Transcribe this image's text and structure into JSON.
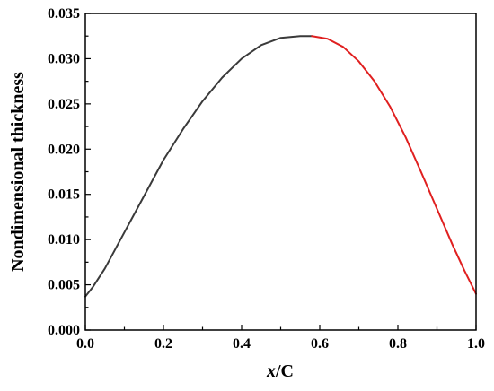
{
  "chart_data": {
    "type": "line",
    "xlabel_italic": "x",
    "xlabel_rest": "/C",
    "ylabel": "Nondimensional thickness",
    "xlim": [
      0.0,
      1.0
    ],
    "ylim": [
      0.0,
      0.035
    ],
    "x_ticks": [
      "0.0",
      "0.2",
      "0.4",
      "0.6",
      "0.8",
      "1.0"
    ],
    "y_ticks": [
      "0.000",
      "0.005",
      "0.010",
      "0.015",
      "0.020",
      "0.025",
      "0.030",
      "0.035"
    ],
    "grid": false,
    "series": [
      {
        "color": "#3a3a3a",
        "points": [
          [
            0.0,
            0.0037
          ],
          [
            0.02,
            0.0048
          ],
          [
            0.05,
            0.0068
          ],
          [
            0.08,
            0.0092
          ],
          [
            0.1,
            0.0108
          ],
          [
            0.15,
            0.0148
          ],
          [
            0.2,
            0.0188
          ],
          [
            0.25,
            0.0222
          ],
          [
            0.3,
            0.0253
          ],
          [
            0.35,
            0.0279
          ],
          [
            0.4,
            0.03
          ],
          [
            0.45,
            0.0315
          ],
          [
            0.5,
            0.0323
          ],
          [
            0.55,
            0.0325
          ],
          [
            0.58,
            0.0325
          ]
        ]
      },
      {
        "color": "#e02020",
        "points": [
          [
            0.58,
            0.0325
          ],
          [
            0.62,
            0.0322
          ],
          [
            0.66,
            0.0313
          ],
          [
            0.7,
            0.0297
          ],
          [
            0.74,
            0.0275
          ],
          [
            0.78,
            0.0247
          ],
          [
            0.82,
            0.0213
          ],
          [
            0.86,
            0.0174
          ],
          [
            0.9,
            0.0134
          ],
          [
            0.94,
            0.0094
          ],
          [
            0.97,
            0.0066
          ],
          [
            1.0,
            0.004
          ]
        ]
      }
    ]
  }
}
